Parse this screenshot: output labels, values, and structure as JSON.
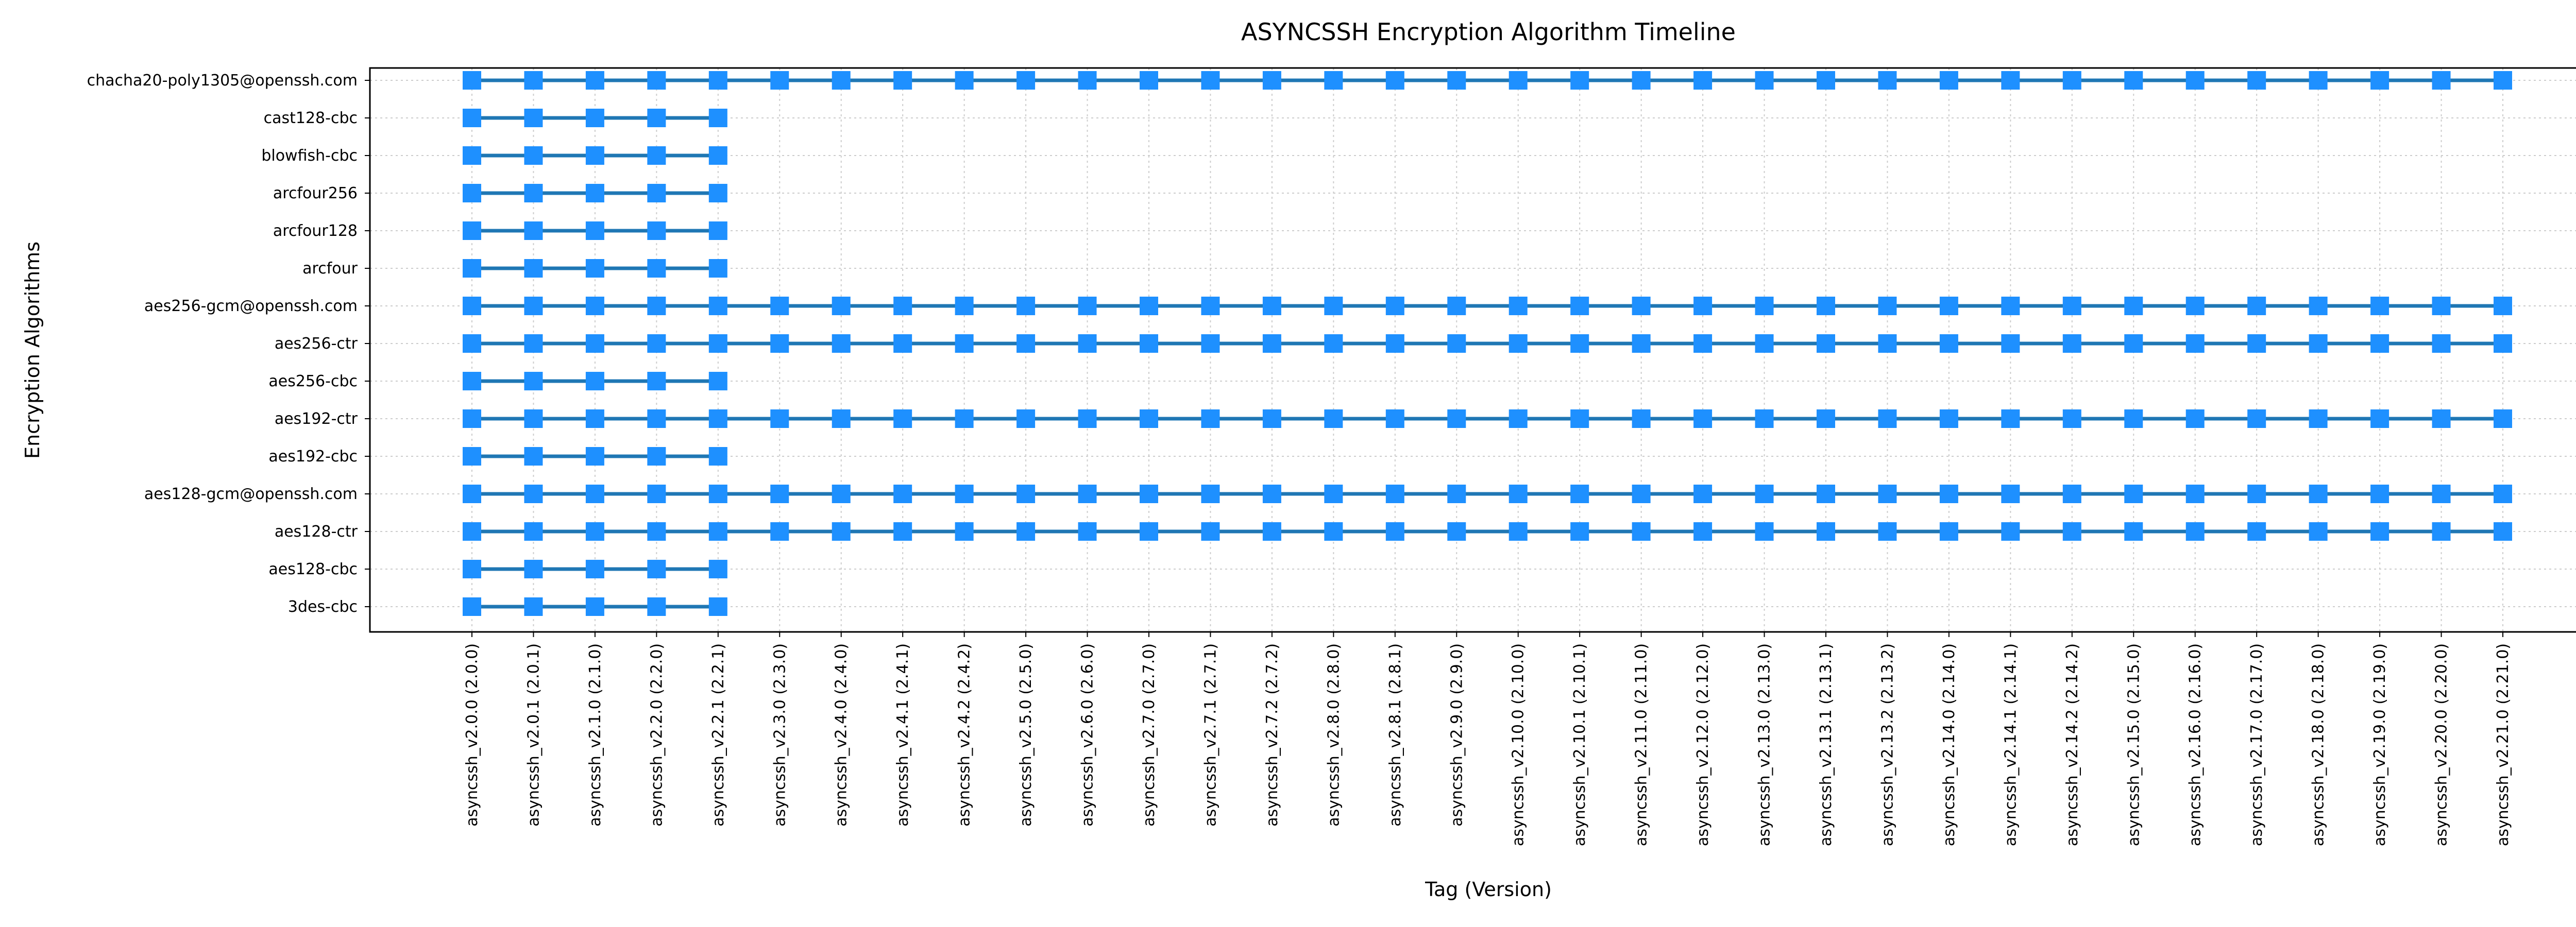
{
  "chart_data": {
    "type": "line",
    "title": "ASYNCSSH Encryption Algorithm Timeline",
    "xlabel": "Tag (Version)",
    "ylabel": "Encryption Algorithms",
    "grid": true,
    "colors": {
      "marker": "#1e90ff",
      "line": "#1f77b4",
      "grid": "#cccccc",
      "axes": "#000000"
    },
    "x": [
      "asyncssh_v2.0.0 (2.0.0)",
      "asyncssh_v2.0.1 (2.0.1)",
      "asyncssh_v2.1.0 (2.1.0)",
      "asyncssh_v2.2.0 (2.2.0)",
      "asyncssh_v2.2.1 (2.2.1)",
      "asyncssh_v2.3.0 (2.3.0)",
      "asyncssh_v2.4.0 (2.4.0)",
      "asyncssh_v2.4.1 (2.4.1)",
      "asyncssh_v2.4.2 (2.4.2)",
      "asyncssh_v2.5.0 (2.5.0)",
      "asyncssh_v2.6.0 (2.6.0)",
      "asyncssh_v2.7.0 (2.7.0)",
      "asyncssh_v2.7.1 (2.7.1)",
      "asyncssh_v2.7.2 (2.7.2)",
      "asyncssh_v2.8.0 (2.8.0)",
      "asyncssh_v2.8.1 (2.8.1)",
      "asyncssh_v2.9.0 (2.9.0)",
      "asyncssh_v2.10.0 (2.10.0)",
      "asyncssh_v2.10.1 (2.10.1)",
      "asyncssh_v2.11.0 (2.11.0)",
      "asyncssh_v2.12.0 (2.12.0)",
      "asyncssh_v2.13.0 (2.13.0)",
      "asyncssh_v2.13.1 (2.13.1)",
      "asyncssh_v2.13.2 (2.13.2)",
      "asyncssh_v2.14.0 (2.14.0)",
      "asyncssh_v2.14.1 (2.14.1)",
      "asyncssh_v2.14.2 (2.14.2)",
      "asyncssh_v2.15.0 (2.15.0)",
      "asyncssh_v2.16.0 (2.16.0)",
      "asyncssh_v2.17.0 (2.17.0)",
      "asyncssh_v2.18.0 (2.18.0)",
      "asyncssh_v2.19.0 (2.19.0)",
      "asyncssh_v2.20.0 (2.20.0)",
      "asyncssh_v2.21.0 (2.21.0)"
    ],
    "categories": [
      "chacha20-poly1305@openssh.com",
      "cast128-cbc",
      "blowfish-cbc",
      "arcfour256",
      "arcfour128",
      "arcfour",
      "aes256-gcm@openssh.com",
      "aes256-ctr",
      "aes256-cbc",
      "aes192-ctr",
      "aes192-cbc",
      "aes128-gcm@openssh.com",
      "aes128-ctr",
      "aes128-cbc",
      "3des-cbc"
    ],
    "series": [
      {
        "algorithm": "chacha20-poly1305@openssh.com",
        "first_version": "asyncssh_v2.0.0 (2.0.0)",
        "last_version": "asyncssh_v2.21.0 (2.21.0)"
      },
      {
        "algorithm": "cast128-cbc",
        "first_version": "asyncssh_v2.0.0 (2.0.0)",
        "last_version": "asyncssh_v2.2.1 (2.2.1)"
      },
      {
        "algorithm": "blowfish-cbc",
        "first_version": "asyncssh_v2.0.0 (2.0.0)",
        "last_version": "asyncssh_v2.2.1 (2.2.1)"
      },
      {
        "algorithm": "arcfour256",
        "first_version": "asyncssh_v2.0.0 (2.0.0)",
        "last_version": "asyncssh_v2.2.1 (2.2.1)"
      },
      {
        "algorithm": "arcfour128",
        "first_version": "asyncssh_v2.0.0 (2.0.0)",
        "last_version": "asyncssh_v2.2.1 (2.2.1)"
      },
      {
        "algorithm": "arcfour",
        "first_version": "asyncssh_v2.0.0 (2.0.0)",
        "last_version": "asyncssh_v2.2.1 (2.2.1)"
      },
      {
        "algorithm": "aes256-gcm@openssh.com",
        "first_version": "asyncssh_v2.0.0 (2.0.0)",
        "last_version": "asyncssh_v2.21.0 (2.21.0)"
      },
      {
        "algorithm": "aes256-ctr",
        "first_version": "asyncssh_v2.0.0 (2.0.0)",
        "last_version": "asyncssh_v2.21.0 (2.21.0)"
      },
      {
        "algorithm": "aes256-cbc",
        "first_version": "asyncssh_v2.0.0 (2.0.0)",
        "last_version": "asyncssh_v2.2.1 (2.2.1)"
      },
      {
        "algorithm": "aes192-ctr",
        "first_version": "asyncssh_v2.0.0 (2.0.0)",
        "last_version": "asyncssh_v2.21.0 (2.21.0)"
      },
      {
        "algorithm": "aes192-cbc",
        "first_version": "asyncssh_v2.0.0 (2.0.0)",
        "last_version": "asyncssh_v2.2.1 (2.2.1)"
      },
      {
        "algorithm": "aes128-gcm@openssh.com",
        "first_version": "asyncssh_v2.0.0 (2.0.0)",
        "last_version": "asyncssh_v2.21.0 (2.21.0)"
      },
      {
        "algorithm": "aes128-ctr",
        "first_version": "asyncssh_v2.0.0 (2.0.0)",
        "last_version": "asyncssh_v2.21.0 (2.21.0)"
      },
      {
        "algorithm": "aes128-cbc",
        "first_version": "asyncssh_v2.0.0 (2.0.0)",
        "last_version": "asyncssh_v2.2.1 (2.2.1)"
      },
      {
        "algorithm": "3des-cbc",
        "first_version": "asyncssh_v2.0.0 (2.0.0)",
        "last_version": "asyncssh_v2.2.1 (2.2.1)"
      }
    ]
  }
}
